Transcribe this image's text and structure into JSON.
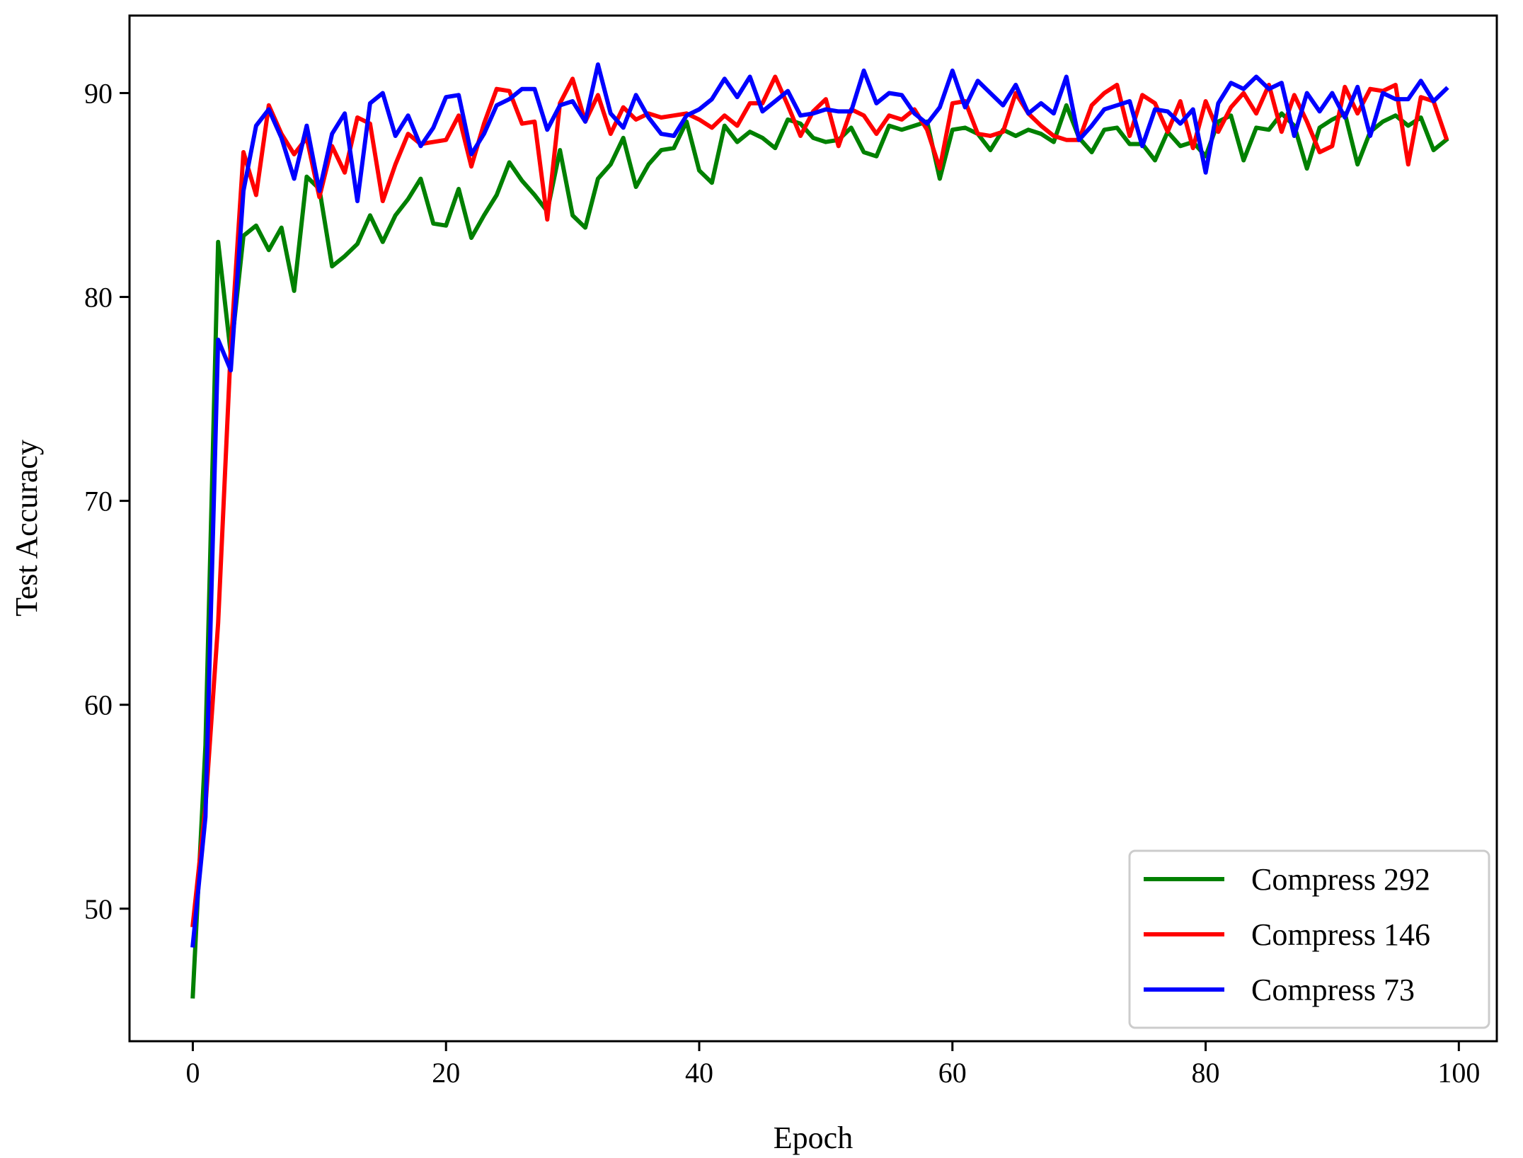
{
  "chart_data": {
    "type": "line",
    "xlabel": "Epoch",
    "ylabel": "Test Accuracy",
    "xlim": [
      -5,
      103
    ],
    "ylim": [
      43.5,
      93.8
    ],
    "xticks": [
      0,
      20,
      40,
      60,
      80,
      100
    ],
    "yticks": [
      50,
      60,
      70,
      80,
      90
    ],
    "grid": false,
    "legend_position": "lower-right",
    "x": [
      0,
      1,
      2,
      3,
      4,
      5,
      6,
      7,
      8,
      9,
      10,
      11,
      12,
      13,
      14,
      15,
      16,
      17,
      18,
      19,
      20,
      21,
      22,
      23,
      24,
      25,
      26,
      27,
      28,
      29,
      30,
      31,
      32,
      33,
      34,
      35,
      36,
      37,
      38,
      39,
      40,
      41,
      42,
      43,
      44,
      45,
      46,
      47,
      48,
      49,
      50,
      51,
      52,
      53,
      54,
      55,
      56,
      57,
      58,
      59,
      60,
      61,
      62,
      63,
      64,
      65,
      66,
      67,
      68,
      69,
      70,
      71,
      72,
      73,
      74,
      75,
      76,
      77,
      78,
      79,
      80,
      81,
      82,
      83,
      84,
      85,
      86,
      87,
      88,
      89,
      90,
      91,
      92,
      93,
      94,
      95,
      96,
      97,
      98,
      99
    ],
    "series": [
      {
        "name": "Compress 292",
        "color": "#008000",
        "values": [
          45.7,
          58.0,
          82.7,
          77.2,
          83.0,
          83.5,
          82.3,
          83.4,
          80.3,
          85.9,
          85.3,
          81.5,
          82.0,
          82.6,
          84.0,
          82.7,
          84.0,
          84.8,
          85.8,
          83.6,
          83.5,
          85.3,
          82.9,
          84.0,
          85.0,
          86.6,
          85.7,
          85.0,
          84.2,
          87.2,
          84.0,
          83.4,
          85.8,
          86.5,
          87.8,
          85.4,
          86.5,
          87.2,
          87.3,
          88.6,
          86.2,
          85.6,
          88.4,
          87.6,
          88.1,
          87.8,
          87.3,
          88.7,
          88.5,
          87.8,
          87.6,
          87.7,
          88.3,
          87.1,
          86.9,
          88.4,
          88.2,
          88.4,
          88.6,
          85.8,
          88.2,
          88.3,
          88.0,
          87.2,
          88.2,
          87.9,
          88.2,
          88.0,
          87.6,
          89.4,
          87.8,
          87.1,
          88.2,
          88.3,
          87.5,
          87.5,
          86.7,
          88.1,
          87.4,
          87.6,
          86.9,
          88.6,
          88.9,
          86.7,
          88.3,
          88.2,
          89.0,
          88.4,
          86.3,
          88.3,
          88.7,
          89.0,
          86.5,
          88.1,
          88.6,
          88.9,
          88.4,
          88.8,
          87.2,
          87.7
        ]
      },
      {
        "name": "Compress 146",
        "color": "#ff0000",
        "values": [
          49.2,
          55.0,
          64.0,
          77.5,
          87.1,
          85.0,
          89.4,
          88.0,
          87.0,
          87.8,
          84.9,
          87.4,
          86.1,
          88.8,
          88.5,
          84.7,
          86.5,
          88.0,
          87.5,
          87.6,
          87.7,
          88.9,
          86.4,
          88.5,
          90.2,
          90.1,
          88.5,
          88.6,
          83.8,
          89.5,
          90.7,
          88.6,
          89.9,
          88.0,
          89.3,
          88.7,
          89.0,
          88.8,
          88.9,
          89.0,
          88.7,
          88.3,
          88.9,
          88.4,
          89.5,
          89.5,
          90.8,
          89.4,
          87.9,
          89.1,
          89.7,
          87.4,
          89.2,
          88.9,
          88.0,
          88.9,
          88.7,
          89.2,
          88.2,
          86.3,
          89.5,
          89.6,
          88.0,
          87.9,
          88.1,
          90.0,
          89.0,
          88.4,
          87.9,
          87.7,
          87.7,
          89.4,
          90.0,
          90.4,
          87.9,
          89.9,
          89.5,
          88.1,
          89.6,
          87.3,
          89.6,
          88.1,
          89.3,
          90.0,
          89.0,
          90.4,
          88.1,
          89.9,
          88.6,
          87.1,
          87.4,
          90.3,
          89.0,
          90.2,
          90.1,
          90.4,
          86.5,
          89.8,
          89.6,
          87.8
        ]
      },
      {
        "name": "Compress 73",
        "color": "#0000ff",
        "values": [
          48.2,
          54.5,
          77.9,
          76.4,
          85.2,
          88.4,
          89.2,
          87.8,
          85.8,
          88.4,
          85.2,
          88.0,
          89.0,
          84.7,
          89.5,
          90.0,
          87.9,
          88.9,
          87.4,
          88.3,
          89.8,
          89.9,
          87.0,
          88.0,
          89.4,
          89.7,
          90.2,
          90.2,
          88.2,
          89.4,
          89.6,
          88.6,
          91.4,
          89.0,
          88.3,
          89.9,
          88.8,
          88.0,
          87.9,
          88.9,
          89.2,
          89.7,
          90.7,
          89.8,
          90.8,
          89.1,
          89.6,
          90.1,
          88.9,
          89.0,
          89.2,
          89.1,
          89.1,
          91.1,
          89.5,
          90.0,
          89.9,
          89.0,
          88.5,
          89.3,
          91.1,
          89.3,
          90.6,
          90.0,
          89.4,
          90.4,
          89.0,
          89.5,
          89.0,
          90.8,
          87.7,
          88.4,
          89.2,
          89.4,
          89.6,
          87.4,
          89.2,
          89.1,
          88.5,
          89.2,
          86.1,
          89.5,
          90.5,
          90.2,
          90.8,
          90.2,
          90.5,
          87.9,
          90.0,
          89.1,
          90.0,
          88.8,
          90.3,
          87.9,
          90.0,
          89.7,
          89.7,
          90.6,
          89.6,
          90.2
        ]
      }
    ]
  }
}
